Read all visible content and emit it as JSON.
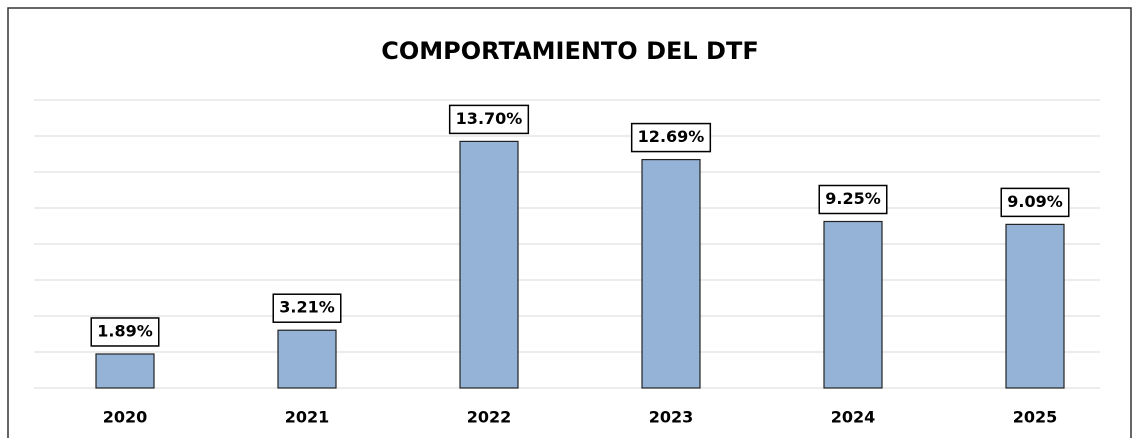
{
  "chart_data": {
    "type": "bar",
    "title": "COMPORTAMIENTO DEL DTF",
    "categories": [
      "2020",
      "2021",
      "2022",
      "2023",
      "2024",
      "2025"
    ],
    "values": [
      1.89,
      3.21,
      13.7,
      12.69,
      9.25,
      9.09
    ],
    "value_labels": [
      "1.89%",
      "3.21%",
      "13.70%",
      "12.69%",
      "9.25%",
      "9.09%"
    ],
    "color": "#95b3d7",
    "ylim": [
      0,
      16
    ],
    "yticks": [
      0,
      2,
      4,
      6,
      8,
      10,
      12,
      14,
      16
    ],
    "grid": true,
    "show_y_tick_labels": false
  }
}
